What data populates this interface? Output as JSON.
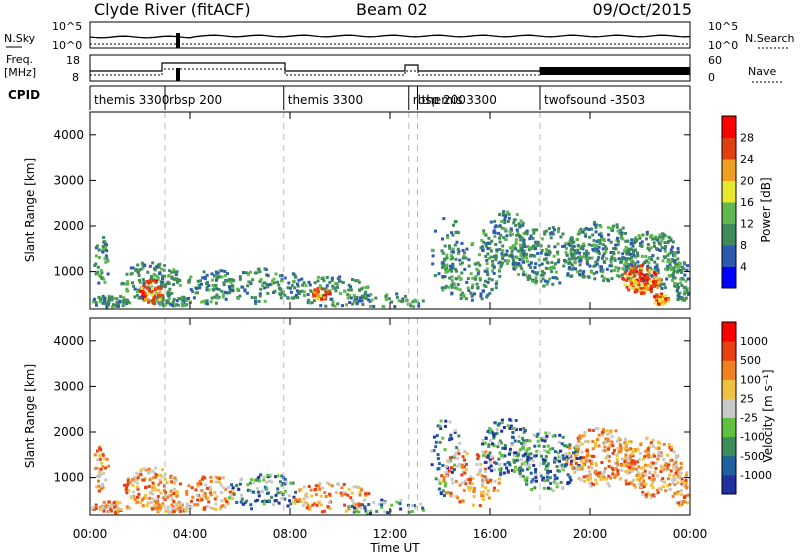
{
  "header": {
    "station": "Clyde River (fitACF)",
    "beam": "Beam 02",
    "date": "09/Oct/2015"
  },
  "chart_data": [
    {
      "type": "line",
      "panel": "noise",
      "left_label": "N.Sky",
      "right_label": "N.Search",
      "left_ticks": [
        "10^5",
        "10^0"
      ],
      "right_ticks": [
        "10^5",
        "10^0"
      ],
      "scale": "log"
    },
    {
      "type": "line",
      "panel": "frequency-nave",
      "left_label": "Freq.",
      "left_unit": "[MHz]",
      "right_label": "Nave",
      "left_ticks": [
        18,
        8
      ],
      "right_ticks": [
        60,
        0
      ]
    },
    {
      "type": "table",
      "panel": "cpid",
      "label": "CPID",
      "segments": [
        {
          "name": "themis 3300",
          "start_hour": 0.0,
          "end_hour": 3.0
        },
        {
          "name": "rbsp 200",
          "start_hour": 3.0,
          "end_hour": 7.75
        },
        {
          "name": "themis 3300",
          "start_hour": 7.75,
          "end_hour": 12.75
        },
        {
          "name": "rbsp 200",
          "start_hour": 12.75,
          "end_hour": 13.1
        },
        {
          "name": "themis 3300",
          "start_hour": 13.1,
          "end_hour": 18.0
        },
        {
          "name": "twofsound -3503",
          "start_hour": 18.0,
          "end_hour": 24.0
        }
      ]
    },
    {
      "type": "heatmap",
      "panel": "power",
      "ylabel": "Slant Range [km]",
      "ylim": [
        180,
        4500
      ],
      "yticks": [
        1000,
        2000,
        3000,
        4000
      ],
      "colorbar_label": "Power [dB]",
      "colorbar_ticks": [
        "4",
        "8",
        "12",
        "16",
        "20",
        "24",
        "28"
      ],
      "colors": [
        "#0000ff",
        "#2b5ab0",
        "#3f8a5a",
        "#5fb84f",
        "#e8e830",
        "#f0a020",
        "#e04010",
        "#ff0000"
      ]
    },
    {
      "type": "heatmap",
      "panel": "velocity",
      "ylabel": "Slant Range [km]",
      "ylim": [
        180,
        4500
      ],
      "yticks": [
        1000,
        2000,
        3000,
        4000
      ],
      "colorbar_label": "Velocity [m s⁻¹]",
      "colorbar_ticks": [
        "1000",
        "500",
        "100",
        "25",
        "-25",
        "-100",
        "-500",
        "-1000"
      ],
      "colors": [
        "#2030a0",
        "#2060a0",
        "#3f8a5a",
        "#60c040",
        "#c8c8c8",
        "#f0c040",
        "#f08020",
        "#e84010",
        "#ff0000"
      ]
    }
  ],
  "x_axis": {
    "label": "Time UT",
    "ticks": [
      "00:00",
      "04:00",
      "08:00",
      "12:00",
      "16:00",
      "20:00",
      "00:00"
    ],
    "range_hours": [
      0,
      24
    ]
  }
}
